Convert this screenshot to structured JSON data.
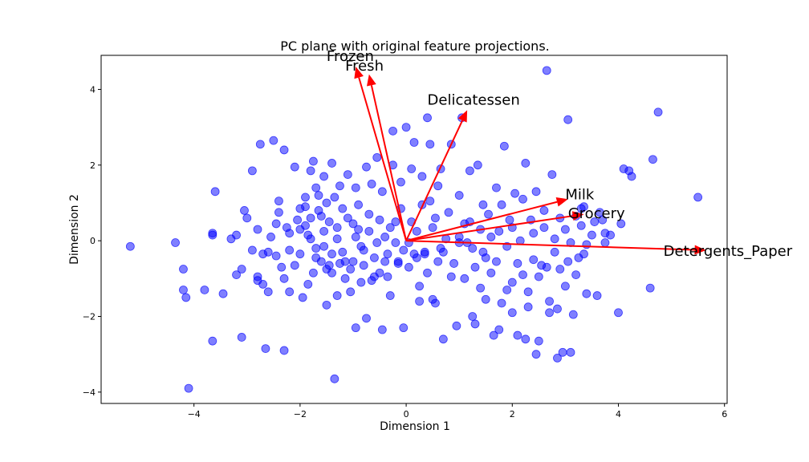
{
  "chart_data": {
    "type": "scatter",
    "title": "PC plane with original feature projections.",
    "xlabel": "Dimension 1",
    "ylabel": "Dimension 2",
    "xlim": [
      -5.75,
      6.05
    ],
    "ylim": [
      -4.3,
      4.9
    ],
    "xticks": [
      -4,
      -2,
      0,
      2,
      4,
      6
    ],
    "yticks": [
      -4,
      -2,
      0,
      2,
      4
    ],
    "grid": false,
    "colors": {
      "points": "#0000ff",
      "arrows": "#ff0000"
    },
    "points": [
      [
        -5.2,
        -0.15
      ],
      [
        -4.35,
        -0.05
      ],
      [
        -4.2,
        -1.3
      ],
      [
        -4.15,
        -1.5
      ],
      [
        -4.2,
        -0.75
      ],
      [
        -4.1,
        -3.9
      ],
      [
        -3.8,
        -1.3
      ],
      [
        -3.65,
        -2.65
      ],
      [
        -3.65,
        0.2
      ],
      [
        -3.65,
        0.15
      ],
      [
        -3.6,
        1.3
      ],
      [
        -3.45,
        -1.4
      ],
      [
        -3.3,
        0.05
      ],
      [
        -3.2,
        -0.9
      ],
      [
        -3.2,
        0.15
      ],
      [
        -3.1,
        -2.55
      ],
      [
        -3.1,
        -0.75
      ],
      [
        -3.05,
        0.8
      ],
      [
        -2.9,
        1.85
      ],
      [
        -2.9,
        -0.25
      ],
      [
        -2.8,
        -0.95
      ],
      [
        -2.8,
        -1.05
      ],
      [
        -2.75,
        2.55
      ],
      [
        -2.7,
        -1.15
      ],
      [
        -2.7,
        -0.35
      ],
      [
        -2.6,
        -0.3
      ],
      [
        -2.55,
        0.1
      ],
      [
        -2.5,
        2.65
      ],
      [
        -2.45,
        0.45
      ],
      [
        -2.45,
        -0.4
      ],
      [
        -2.4,
        1.05
      ],
      [
        -2.4,
        0.75
      ],
      [
        -2.35,
        -0.7
      ],
      [
        -2.3,
        2.4
      ],
      [
        -2.3,
        -2.9
      ],
      [
        -2.25,
        0.35
      ],
      [
        -2.2,
        -1.35
      ],
      [
        -2.2,
        0.2
      ],
      [
        -2.1,
        -0.65
      ],
      [
        -2.1,
        1.95
      ],
      [
        -2.05,
        0.55
      ],
      [
        -2.0,
        -0.35
      ],
      [
        -1.95,
        -1.5
      ],
      [
        -1.9,
        0.9
      ],
      [
        -1.9,
        1.15
      ],
      [
        -1.85,
        0.15
      ],
      [
        -1.8,
        0.6
      ],
      [
        -1.8,
        1.85
      ],
      [
        -1.75,
        -0.85
      ],
      [
        -1.7,
        1.4
      ],
      [
        -1.7,
        -0.2
      ],
      [
        -1.65,
        0.8
      ],
      [
        -1.6,
        -0.55
      ],
      [
        -1.55,
        1.7
      ],
      [
        -1.55,
        0.25
      ],
      [
        -1.5,
        -1.7
      ],
      [
        -1.5,
        -0.75
      ],
      [
        -1.45,
        0.5
      ],
      [
        -1.4,
        -0.35
      ],
      [
        -1.4,
        2.05
      ],
      [
        -1.35,
        1.15
      ],
      [
        -1.3,
        -1.45
      ],
      [
        -1.3,
        0.05
      ],
      [
        -1.25,
        -0.6
      ],
      [
        -1.2,
        0.85
      ],
      [
        -1.15,
        -1.0
      ],
      [
        -1.1,
        1.75
      ],
      [
        -1.05,
        -0.75
      ],
      [
        -1.0,
        0.45
      ],
      [
        -0.95,
        -2.3
      ],
      [
        -0.95,
        1.4
      ],
      [
        -0.9,
        0.3
      ],
      [
        -0.85,
        -0.15
      ],
      [
        -0.8,
        -0.65
      ],
      [
        -0.75,
        1.95
      ],
      [
        -0.7,
        0.7
      ],
      [
        -0.65,
        -1.05
      ],
      [
        -0.6,
        -0.45
      ],
      [
        -0.55,
        2.2
      ],
      [
        -0.5,
        -0.85
      ],
      [
        -0.45,
        1.3
      ],
      [
        -0.4,
        0.1
      ],
      [
        -0.35,
        -0.35
      ],
      [
        -0.3,
        -1.45
      ],
      [
        -0.25,
        2.9
      ],
      [
        -0.2,
        0.5
      ],
      [
        -0.15,
        -0.6
      ],
      [
        -0.1,
        1.55
      ],
      [
        -0.05,
        -0.25
      ],
      [
        0.0,
        3.0
      ],
      [
        0.05,
        -0.7
      ],
      [
        0.1,
        1.9
      ],
      [
        0.15,
        2.6
      ],
      [
        0.2,
        0.25
      ],
      [
        0.25,
        -1.2
      ],
      [
        0.3,
        1.7
      ],
      [
        0.35,
        -0.35
      ],
      [
        0.4,
        3.25
      ],
      [
        0.45,
        2.55
      ],
      [
        0.5,
        -1.55
      ],
      [
        0.55,
        0.6
      ],
      [
        0.6,
        -0.55
      ],
      [
        0.65,
        1.9
      ],
      [
        0.7,
        -2.6
      ],
      [
        0.75,
        0.05
      ],
      [
        0.85,
        -0.95
      ],
      [
        0.95,
        -2.25
      ],
      [
        1.0,
        1.2
      ],
      [
        1.05,
        3.25
      ],
      [
        1.1,
        0.45
      ],
      [
        1.15,
        -0.05
      ],
      [
        1.2,
        1.85
      ],
      [
        1.25,
        -0.2
      ],
      [
        1.3,
        -2.2
      ],
      [
        1.35,
        2.0
      ],
      [
        1.4,
        -1.25
      ],
      [
        1.45,
        0.95
      ],
      [
        1.5,
        -0.45
      ],
      [
        1.55,
        0.7
      ],
      [
        1.6,
        -0.85
      ],
      [
        1.65,
        -2.5
      ],
      [
        1.7,
        1.4
      ],
      [
        1.75,
        0.25
      ],
      [
        1.8,
        -1.65
      ],
      [
        1.85,
        2.5
      ],
      [
        1.9,
        -0.15
      ],
      [
        1.95,
        0.55
      ],
      [
        2.0,
        -1.1
      ],
      [
        2.05,
        1.25
      ],
      [
        2.1,
        -2.5
      ],
      [
        2.15,
        0.0
      ],
      [
        2.2,
        -0.9
      ],
      [
        2.25,
        2.05
      ],
      [
        2.3,
        -1.75
      ],
      [
        2.35,
        0.55
      ],
      [
        2.4,
        -0.5
      ],
      [
        2.45,
        1.3
      ],
      [
        2.5,
        -2.65
      ],
      [
        2.55,
        -0.65
      ],
      [
        2.6,
        0.35
      ],
      [
        2.65,
        4.5
      ],
      [
        2.7,
        -1.9
      ],
      [
        2.75,
        1.75
      ],
      [
        2.8,
        -0.3
      ],
      [
        2.85,
        -3.1
      ],
      [
        2.9,
        0.6
      ],
      [
        2.95,
        -2.95
      ],
      [
        3.0,
        -1.2
      ],
      [
        3.05,
        3.2
      ],
      [
        3.1,
        -0.05
      ],
      [
        3.15,
        -1.95
      ],
      [
        3.2,
        0.65
      ],
      [
        3.25,
        -0.45
      ],
      [
        3.3,
        0.4
      ],
      [
        3.35,
        0.9
      ],
      [
        3.4,
        -1.4
      ],
      [
        3.5,
        0.15
      ],
      [
        3.6,
        -1.45
      ],
      [
        3.7,
        0.55
      ],
      [
        3.75,
        0.2
      ],
      [
        3.85,
        0.15
      ],
      [
        4.0,
        -1.9
      ],
      [
        4.05,
        0.45
      ],
      [
        4.1,
        1.9
      ],
      [
        4.2,
        1.85
      ],
      [
        4.25,
        1.7
      ],
      [
        4.6,
        -1.25
      ],
      [
        4.65,
        2.15
      ],
      [
        4.75,
        3.4
      ],
      [
        5.5,
        1.15
      ],
      [
        -2.0,
        0.85
      ],
      [
        -1.9,
        0.4
      ],
      [
        -1.8,
        0.05
      ],
      [
        -1.7,
        -0.45
      ],
      [
        -1.6,
        0.65
      ],
      [
        -1.5,
        1.0
      ],
      [
        -1.4,
        -0.85
      ],
      [
        -1.3,
        0.35
      ],
      [
        -1.2,
        -0.3
      ],
      [
        -1.1,
        0.6
      ],
      [
        -1.0,
        -0.55
      ],
      [
        -0.9,
        0.95
      ],
      [
        -0.8,
        -0.25
      ],
      [
        -0.7,
        0.25
      ],
      [
        -0.6,
        -0.95
      ],
      [
        -0.5,
        0.55
      ],
      [
        -0.4,
        -0.55
      ],
      [
        -0.3,
        0.35
      ],
      [
        -0.2,
        -0.05
      ],
      [
        -0.1,
        0.85
      ],
      [
        0.1,
        0.5
      ],
      [
        0.2,
        -0.45
      ],
      [
        0.3,
        0.95
      ],
      [
        0.4,
        -0.85
      ],
      [
        0.5,
        0.35
      ],
      [
        0.6,
        1.45
      ],
      [
        0.7,
        -0.3
      ],
      [
        0.8,
        0.75
      ],
      [
        0.9,
        -0.6
      ],
      [
        1.0,
        0.1
      ],
      [
        1.1,
        -1.0
      ],
      [
        1.2,
        0.5
      ],
      [
        1.3,
        -0.7
      ],
      [
        1.4,
        0.3
      ],
      [
        1.5,
        -1.55
      ],
      [
        1.6,
        0.1
      ],
      [
        1.7,
        -0.55
      ],
      [
        1.8,
        0.95
      ],
      [
        1.9,
        -1.3
      ],
      [
        2.0,
        0.35
      ],
      [
        2.1,
        -0.6
      ],
      [
        2.2,
        1.1
      ],
      [
        2.3,
        -1.35
      ],
      [
        2.4,
        0.2
      ],
      [
        2.5,
        -0.95
      ],
      [
        2.6,
        0.8
      ],
      [
        2.7,
        -1.6
      ],
      [
        2.8,
        0.05
      ],
      [
        2.9,
        -0.75
      ],
      [
        3.0,
        0.3
      ],
      [
        3.1,
        -2.95
      ],
      [
        3.2,
        -0.9
      ],
      [
        3.3,
        0.85
      ],
      [
        3.4,
        -0.1
      ],
      [
        -2.6,
        -1.35
      ],
      [
        -2.3,
        -1.0
      ],
      [
        -2.2,
        -0.25
      ],
      [
        -2.0,
        0.3
      ],
      [
        -1.85,
        -1.15
      ],
      [
        -1.75,
        2.1
      ],
      [
        -1.65,
        1.2
      ],
      [
        -1.55,
        -0.15
      ],
      [
        -1.45,
        -0.65
      ],
      [
        -1.35,
        -3.65
      ],
      [
        -1.25,
        1.45
      ],
      [
        -1.15,
        -0.55
      ],
      [
        -1.05,
        -1.35
      ],
      [
        -0.95,
        0.1
      ],
      [
        -0.85,
        -1.1
      ],
      [
        -0.75,
        -2.05
      ],
      [
        -0.65,
        1.5
      ],
      [
        -0.55,
        -0.05
      ],
      [
        -0.45,
        -2.35
      ],
      [
        -0.35,
        -0.95
      ],
      [
        -0.25,
        2.0
      ],
      [
        -0.15,
        -0.55
      ],
      [
        -0.05,
        -2.3
      ],
      [
        0.05,
        -0.05
      ],
      [
        0.15,
        -0.35
      ],
      [
        0.25,
        -1.6
      ],
      [
        0.35,
        -0.3
      ],
      [
        0.45,
        1.05
      ],
      [
        0.55,
        -1.65
      ],
      [
        0.65,
        -0.2
      ],
      [
        0.85,
        2.55
      ],
      [
        1.0,
        -0.05
      ],
      [
        1.25,
        -2.0
      ],
      [
        1.45,
        -0.3
      ],
      [
        1.75,
        -2.35
      ],
      [
        2.0,
        -1.9
      ],
      [
        2.25,
        -2.6
      ],
      [
        2.45,
        -3.0
      ],
      [
        2.65,
        -0.7
      ],
      [
        2.85,
        -1.8
      ],
      [
        3.05,
        -0.55
      ],
      [
        3.35,
        -0.35
      ],
      [
        3.55,
        0.5
      ],
      [
        3.65,
        0.75
      ],
      [
        3.75,
        -0.05
      ],
      [
        -2.8,
        0.3
      ],
      [
        -3.0,
        0.6
      ],
      [
        -2.65,
        -2.85
      ]
    ],
    "arrows": [
      {
        "name": "Frozen",
        "x": -0.95,
        "y": 4.6,
        "label_x": -1.5,
        "label_y": 4.75
      },
      {
        "name": "Fresh",
        "x": -0.7,
        "y": 4.4,
        "label_x": -1.15,
        "label_y": 4.5
      },
      {
        "name": "Delicatessen",
        "x": 1.15,
        "y": 3.45,
        "label_x": 0.4,
        "label_y": 3.6
      },
      {
        "name": "Milk",
        "x": 3.05,
        "y": 1.1,
        "label_x": 3.0,
        "label_y": 1.1
      },
      {
        "name": "Grocery",
        "x": 3.35,
        "y": 0.7,
        "label_x": 3.05,
        "label_y": 0.6
      },
      {
        "name": "Detergents_Paper",
        "x": 5.65,
        "y": -0.25,
        "label_x": 4.85,
        "label_y": -0.4
      }
    ]
  }
}
